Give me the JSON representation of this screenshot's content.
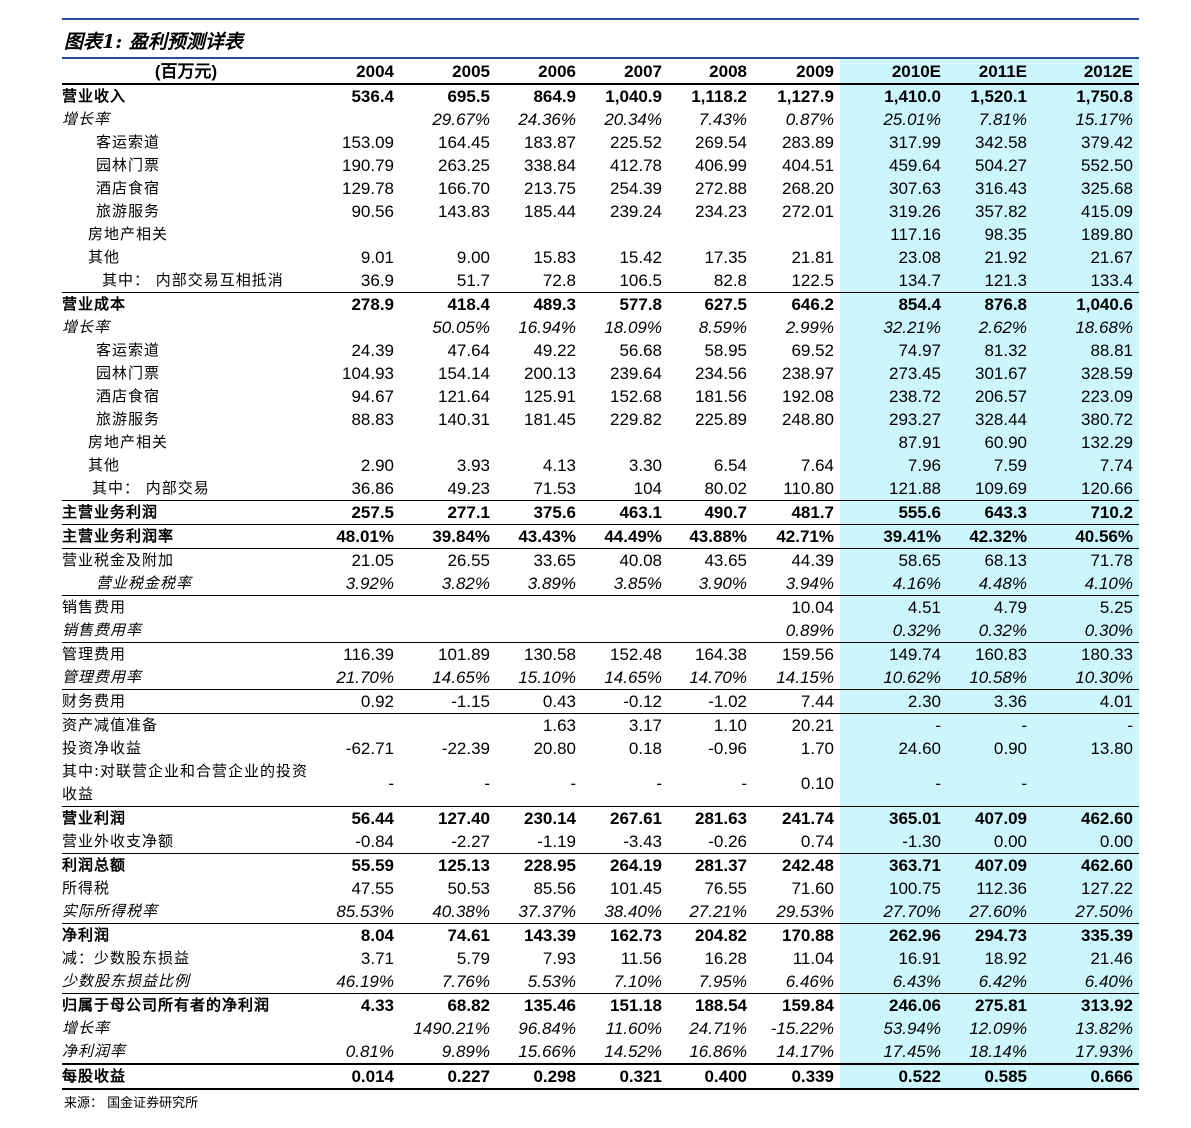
{
  "title": "图表1:  盈利预测详表",
  "source": "来源：  国金证券研究所",
  "colors": {
    "forecast_bg": "#ccf6fc",
    "rule": "#2b4c9b"
  },
  "header": [
    "(百万元)",
    "2004",
    "2005",
    "2006",
    "2007",
    "2008",
    "2009",
    "2010E",
    "2011E",
    "2012E"
  ],
  "rows": [
    {
      "label": "营业收入",
      "style": "bold",
      "v": [
        "536.4",
        "695.5",
        "864.9",
        "1,040.9",
        "1,118.2",
        "1,127.9",
        "1,410.0",
        "1,520.1",
        "1,750.8"
      ]
    },
    {
      "label": "增长率",
      "style": "ital",
      "v": [
        "",
        "29.67%",
        "24.36%",
        "20.34%",
        "7.43%",
        "0.87%",
        "25.01%",
        "7.81%",
        "15.17%"
      ]
    },
    {
      "label": "客运索道",
      "indent": "i1",
      "v": [
        "153.09",
        "164.45",
        "183.87",
        "225.52",
        "269.54",
        "283.89",
        "317.99",
        "342.58",
        "379.42"
      ]
    },
    {
      "label": "园林门票",
      "indent": "i1",
      "v": [
        "190.79",
        "263.25",
        "338.84",
        "412.78",
        "406.99",
        "404.51",
        "459.64",
        "504.27",
        "552.50"
      ]
    },
    {
      "label": "酒店食宿",
      "indent": "i1",
      "v": [
        "129.78",
        "166.70",
        "213.75",
        "254.39",
        "272.88",
        "268.20",
        "307.63",
        "316.43",
        "325.68"
      ]
    },
    {
      "label": "旅游服务",
      "indent": "i1",
      "v": [
        "90.56",
        "143.83",
        "185.44",
        "239.24",
        "234.23",
        "272.01",
        "319.26",
        "357.82",
        "415.09"
      ]
    },
    {
      "label": "房地产相关",
      "indent": "i2",
      "v": [
        "",
        "",
        "",
        "",
        "",
        "",
        "117.16",
        "98.35",
        "189.80"
      ]
    },
    {
      "label": "其他",
      "indent": "i2",
      "v": [
        "9.01",
        "9.00",
        "15.83",
        "15.42",
        "17.35",
        "21.81",
        "23.08",
        "21.92",
        "21.67"
      ]
    },
    {
      "label": "其中：  内部交易互相抵消",
      "indent": "i3",
      "v": [
        "36.9",
        "51.7",
        "72.8",
        "106.5",
        "82.8",
        "122.5",
        "134.7",
        "121.3",
        "133.4"
      ]
    },
    {
      "label": "营业成本",
      "style": "bold",
      "sep": "sep",
      "v": [
        "278.9",
        "418.4",
        "489.3",
        "577.8",
        "627.5",
        "646.2",
        "854.4",
        "876.8",
        "1,040.6"
      ]
    },
    {
      "label": "增长率",
      "style": "ital",
      "v": [
        "",
        "50.05%",
        "16.94%",
        "18.09%",
        "8.59%",
        "2.99%",
        "32.21%",
        "2.62%",
        "18.68%"
      ]
    },
    {
      "label": "客运索道",
      "indent": "i1",
      "v": [
        "24.39",
        "47.64",
        "49.22",
        "56.68",
        "58.95",
        "69.52",
        "74.97",
        "81.32",
        "88.81"
      ]
    },
    {
      "label": "园林门票",
      "indent": "i1",
      "v": [
        "104.93",
        "154.14",
        "200.13",
        "239.64",
        "234.56",
        "238.97",
        "273.45",
        "301.67",
        "328.59"
      ]
    },
    {
      "label": "酒店食宿",
      "indent": "i1",
      "v": [
        "94.67",
        "121.64",
        "125.91",
        "152.68",
        "181.56",
        "192.08",
        "238.72",
        "206.57",
        "223.09"
      ]
    },
    {
      "label": "旅游服务",
      "indent": "i1",
      "v": [
        "88.83",
        "140.31",
        "181.45",
        "229.82",
        "225.89",
        "248.80",
        "293.27",
        "328.44",
        "380.72"
      ]
    },
    {
      "label": "房地产相关",
      "indent": "i2",
      "v": [
        "",
        "",
        "",
        "",
        "",
        "",
        "87.91",
        "60.90",
        "132.29"
      ]
    },
    {
      "label": "其他",
      "indent": "i2",
      "v": [
        "2.90",
        "3.93",
        "4.13",
        "3.30",
        "6.54",
        "7.64",
        "7.96",
        "7.59",
        "7.74"
      ]
    },
    {
      "label": "其中：  内部交易",
      "indent": "i4",
      "v": [
        "36.86",
        "49.23",
        "71.53",
        "104",
        "80.02",
        "110.80",
        "121.88",
        "109.69",
        "120.66"
      ]
    },
    {
      "label": "主营业务利润",
      "style": "bold",
      "sep": "sep",
      "v": [
        "257.5",
        "277.1",
        "375.6",
        "463.1",
        "490.7",
        "481.7",
        "555.6",
        "643.3",
        "710.2"
      ]
    },
    {
      "label": "主营业务利润率",
      "style": "bold",
      "sep": "sep",
      "v": [
        "48.01%",
        "39.84%",
        "43.43%",
        "44.49%",
        "43.88%",
        "42.71%",
        "39.41%",
        "42.32%",
        "40.56%"
      ]
    },
    {
      "label": "营业税金及附加",
      "sep": "sep",
      "v": [
        "21.05",
        "26.55",
        "33.65",
        "40.08",
        "43.65",
        "44.39",
        "58.65",
        "68.13",
        "71.78"
      ]
    },
    {
      "label": "营业税金税率",
      "style": "ital",
      "indent": "i1",
      "v": [
        "3.92%",
        "3.82%",
        "3.89%",
        "3.85%",
        "3.90%",
        "3.94%",
        "4.16%",
        "4.48%",
        "4.10%"
      ]
    },
    {
      "label": "销售费用",
      "sep": "sep",
      "v": [
        "",
        "",
        "",
        "",
        "",
        "10.04",
        "4.51",
        "4.79",
        "5.25"
      ]
    },
    {
      "label": "销售费用率",
      "style": "ital",
      "v": [
        "",
        "",
        "",
        "",
        "",
        "0.89%",
        "0.32%",
        "0.32%",
        "0.30%"
      ]
    },
    {
      "label": "管理费用",
      "sep": "sep",
      "v": [
        "116.39",
        "101.89",
        "130.58",
        "152.48",
        "164.38",
        "159.56",
        "149.74",
        "160.83",
        "180.33"
      ]
    },
    {
      "label": "管理费用率",
      "style": "ital",
      "v": [
        "21.70%",
        "14.65%",
        "15.10%",
        "14.65%",
        "14.70%",
        "14.15%",
        "10.62%",
        "10.58%",
        "10.30%"
      ]
    },
    {
      "label": "财务费用",
      "sep": "sep",
      "v": [
        "0.92",
        "-1.15",
        "0.43",
        "-0.12",
        "-1.02",
        "7.44",
        "2.30",
        "3.36",
        "4.01"
      ]
    },
    {
      "label": "资产减值准备",
      "sep": "sep",
      "v": [
        "",
        "",
        "1.63",
        "3.17",
        "1.10",
        "20.21",
        "-",
        "-",
        "-"
      ]
    },
    {
      "label": "投资净收益",
      "v": [
        "-62.71",
        "-22.39",
        "20.80",
        "0.18",
        "-0.96",
        "1.70",
        "24.60",
        "0.90",
        "13.80"
      ]
    },
    {
      "label": "其中:对联营企业和合营企业的投资收益",
      "tall": true,
      "v": [
        "-",
        "-",
        "-",
        "-",
        "-",
        "0.10",
        "-",
        "-",
        ""
      ]
    },
    {
      "label": "营业利润",
      "style": "bold",
      "sep": "sep",
      "v": [
        "56.44",
        "127.40",
        "230.14",
        "267.61",
        "281.63",
        "241.74",
        "365.01",
        "407.09",
        "462.60"
      ]
    },
    {
      "label": "营业外收支净额",
      "v": [
        "-0.84",
        "-2.27",
        "-1.19",
        "-3.43",
        "-0.26",
        "0.74",
        "-1.30",
        "0.00",
        "0.00"
      ]
    },
    {
      "label": "利润总额",
      "style": "bold",
      "sep": "sep",
      "v": [
        "55.59",
        "125.13",
        "228.95",
        "264.19",
        "281.37",
        "242.48",
        "363.71",
        "407.09",
        "462.60"
      ]
    },
    {
      "label": "所得税",
      "v": [
        "47.55",
        "50.53",
        "85.56",
        "101.45",
        "76.55",
        "71.60",
        "100.75",
        "112.36",
        "127.22"
      ]
    },
    {
      "label": "实际所得税率",
      "style": "ital",
      "v": [
        "85.53%",
        "40.38%",
        "37.37%",
        "38.40%",
        "27.21%",
        "29.53%",
        "27.70%",
        "27.60%",
        "27.50%"
      ]
    },
    {
      "label": "净利润",
      "style": "bold",
      "sep": "sep",
      "v": [
        "8.04",
        "74.61",
        "143.39",
        "162.73",
        "204.82",
        "170.88",
        "262.96",
        "294.73",
        "335.39"
      ]
    },
    {
      "label": "减：少数股东损益",
      "v": [
        "3.71",
        "5.79",
        "7.93",
        "11.56",
        "16.28",
        "11.04",
        "16.91",
        "18.92",
        "21.46"
      ]
    },
    {
      "label": "少数股东损益比例",
      "style": "ital",
      "v": [
        "46.19%",
        "7.76%",
        "5.53%",
        "7.10%",
        "7.95%",
        "6.46%",
        "6.43%",
        "6.42%",
        "6.40%"
      ]
    },
    {
      "label": "归属于母公司所有者的净利润",
      "style": "bold",
      "sep": "sep",
      "v": [
        "4.33",
        "68.82",
        "135.46",
        "151.18",
        "188.54",
        "159.84",
        "246.06",
        "275.81",
        "313.92"
      ]
    },
    {
      "label": "增长率",
      "style": "ital",
      "v": [
        "",
        "1490.21%",
        "96.84%",
        "11.60%",
        "24.71%",
        "-15.22%",
        "53.94%",
        "12.09%",
        "13.82%"
      ]
    },
    {
      "label": "净利润率",
      "style": "ital",
      "v": [
        "0.81%",
        "9.89%",
        "15.66%",
        "14.52%",
        "16.86%",
        "14.17%",
        "17.45%",
        "18.14%",
        "17.93%"
      ]
    },
    {
      "label": "每股收益",
      "style": "bold",
      "sep": "sepb",
      "last": true,
      "v": [
        "0.014",
        "0.227",
        "0.298",
        "0.321",
        "0.400",
        "0.339",
        "0.522",
        "0.585",
        "0.666"
      ]
    }
  ]
}
